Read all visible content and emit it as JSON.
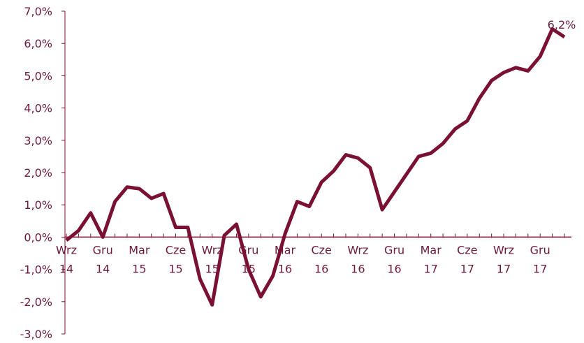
{
  "chart_data": {
    "type": "line",
    "categories": [
      "Wrz 14",
      null,
      null,
      "Gru 14",
      null,
      null,
      "Mar 15",
      null,
      null,
      "Cze 15",
      null,
      null,
      "Wrz 15",
      null,
      null,
      "Gru 15",
      null,
      null,
      "Mar 16",
      null,
      null,
      "Cze 16",
      null,
      null,
      "Wrz 16",
      null,
      null,
      "Gru 16",
      null,
      null,
      "Mar 17",
      null,
      null,
      "Cze 17",
      null,
      null,
      "Wrz 17",
      null,
      null,
      "Gru 17",
      null,
      null
    ],
    "series": [
      {
        "color": "#7b1035",
        "values": [
          -0.1,
          0.2,
          0.75,
          0.0,
          1.1,
          1.55,
          1.5,
          1.2,
          1.35,
          0.3,
          0.3,
          -1.3,
          -2.1,
          0.05,
          0.4,
          -1.0,
          -1.85,
          -1.2,
          0.1,
          1.1,
          0.95,
          1.7,
          2.05,
          2.55,
          2.45,
          2.15,
          0.85,
          1.4,
          1.95,
          2.5,
          2.6,
          2.9,
          3.35,
          3.6,
          4.3,
          4.85,
          5.1,
          5.25,
          5.15,
          5.6,
          6.45,
          6.2
        ],
        "value_labels": [
          null,
          null,
          null,
          null,
          null,
          null,
          null,
          null,
          null,
          null,
          null,
          null,
          null,
          null,
          null,
          null,
          null,
          null,
          null,
          null,
          null,
          null,
          null,
          null,
          null,
          null,
          null,
          null,
          null,
          null,
          null,
          null,
          null,
          null,
          null,
          null,
          null,
          null,
          null,
          null,
          null,
          "6,2%"
        ]
      }
    ],
    "ylim": [
      -3,
      7
    ],
    "yticks": [
      {
        "value": -3,
        "label": "-3,0%"
      },
      {
        "value": -2,
        "label": "-2,0%"
      },
      {
        "value": -1,
        "label": "-1,0%"
      },
      {
        "value": 0,
        "label": "0,0%"
      },
      {
        "value": 1,
        "label": "1,0%"
      },
      {
        "value": 2,
        "label": "2,0%"
      },
      {
        "value": 3,
        "label": "3,0%"
      },
      {
        "value": 4,
        "label": "4,0%"
      },
      {
        "value": 5,
        "label": "5,0%"
      },
      {
        "value": 6,
        "label": "6,0%"
      },
      {
        "value": 7,
        "label": "7,0%"
      }
    ]
  }
}
